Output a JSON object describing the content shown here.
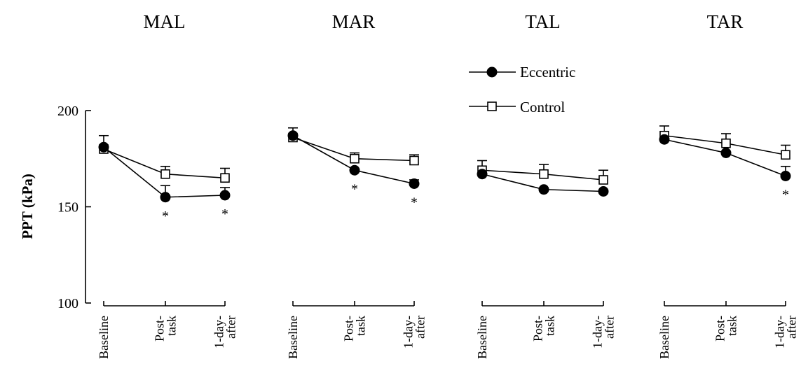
{
  "chart_data": {
    "type": "line",
    "ylabel": "PPT (kPa)",
    "yticks": [
      100,
      150,
      200
    ],
    "ylim": [
      100,
      200
    ],
    "categories": [
      "Baseline",
      "Post-task",
      "1-day-after"
    ],
    "category_lines": [
      [
        "Baseline"
      ],
      [
        "Post-",
        "task"
      ],
      [
        "1-day-",
        "after"
      ]
    ],
    "legend": [
      "Eccentric",
      "Control"
    ],
    "significance_marker": "*",
    "panels": [
      {
        "title": "MAL",
        "series": [
          {
            "name": "Eccentric",
            "values": [
              181,
              155,
              156
            ],
            "errors": [
              0,
              6,
              4
            ],
            "significant": [
              false,
              true,
              true
            ]
          },
          {
            "name": "Control",
            "values": [
              180,
              167,
              165
            ],
            "errors": [
              7,
              4,
              5
            ],
            "significant": [
              false,
              false,
              false
            ]
          }
        ]
      },
      {
        "title": "MAR",
        "series": [
          {
            "name": "Eccentric",
            "values": [
              187,
              169,
              162
            ],
            "errors": [
              4,
              0,
              2
            ],
            "significant": [
              false,
              true,
              true
            ]
          },
          {
            "name": "Control",
            "values": [
              186,
              175,
              174
            ],
            "errors": [
              0,
              3,
              3
            ],
            "significant": [
              false,
              false,
              false
            ]
          }
        ]
      },
      {
        "title": "TAL",
        "series": [
          {
            "name": "Eccentric",
            "values": [
              167,
              159,
              158
            ],
            "errors": [
              0,
              0,
              0
            ],
            "significant": [
              false,
              false,
              false
            ]
          },
          {
            "name": "Control",
            "values": [
              169,
              167,
              164
            ],
            "errors": [
              5,
              5,
              5
            ],
            "significant": [
              false,
              false,
              false
            ]
          }
        ]
      },
      {
        "title": "TAR",
        "series": [
          {
            "name": "Eccentric",
            "values": [
              185,
              178,
              166
            ],
            "errors": [
              0,
              0,
              5
            ],
            "significant": [
              false,
              false,
              true
            ]
          },
          {
            "name": "Control",
            "values": [
              187,
              183,
              177
            ],
            "errors": [
              5,
              5,
              5
            ],
            "significant": [
              false,
              false,
              false
            ]
          }
        ]
      }
    ]
  }
}
